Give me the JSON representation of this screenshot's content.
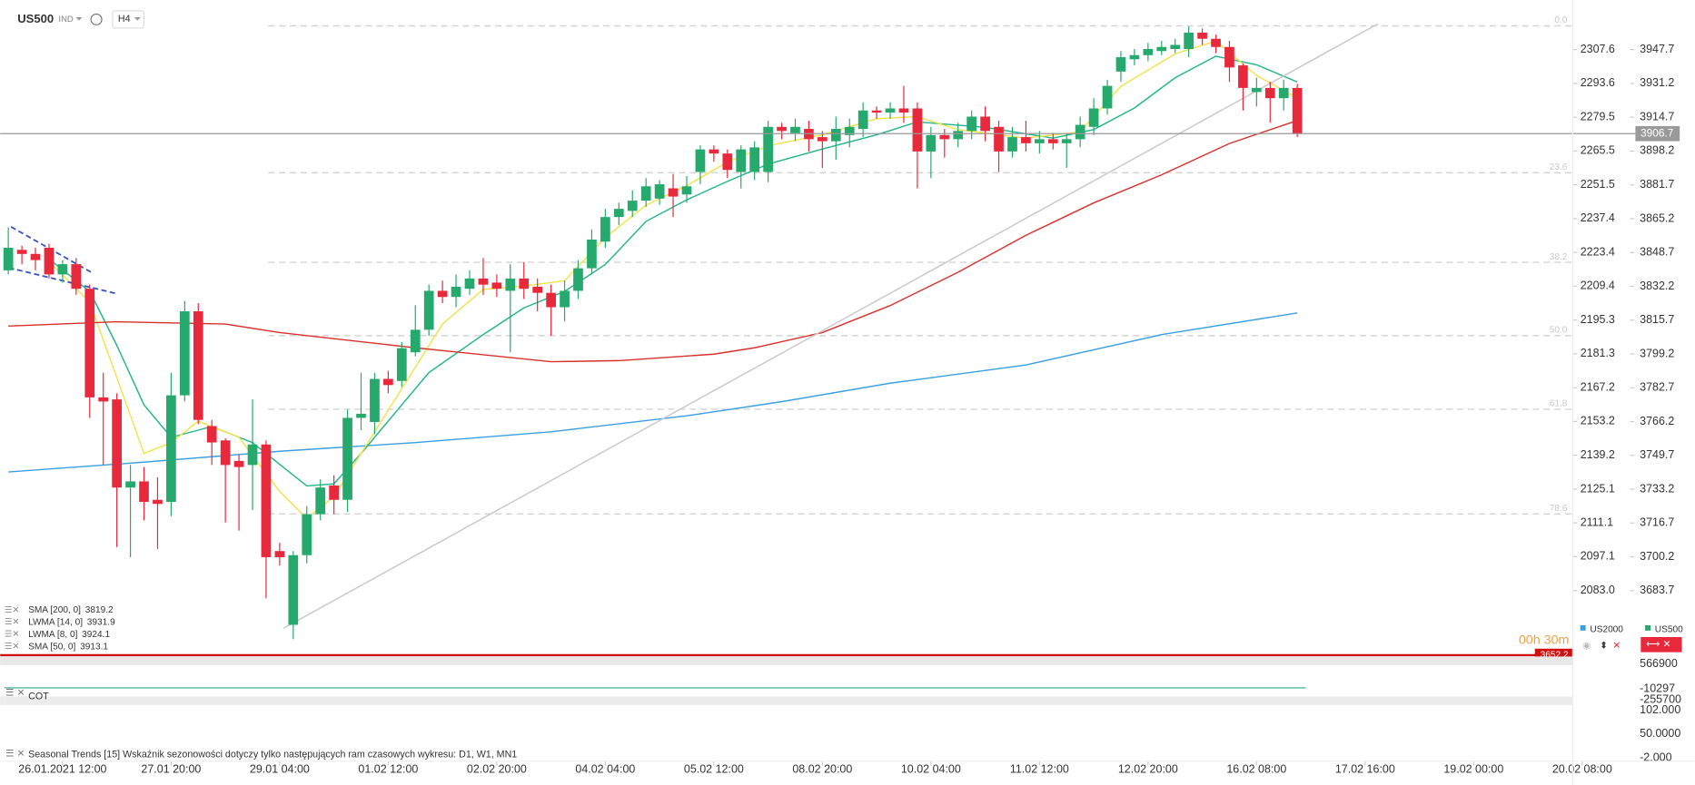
{
  "header": {
    "symbol": "US500",
    "kind": "IND",
    "timeframe": "H4"
  },
  "chart_data": {
    "type": "candlestick",
    "title": "US500",
    "up_color": "#26a96c",
    "down_color": "#e8293b",
    "xlim": [
      -0.6,
      115.3
    ],
    "xticks": [
      {
        "value": 4,
        "label": "26.01.2021 12:00"
      },
      {
        "value": 12,
        "label": "27.01 20:00"
      },
      {
        "value": 20,
        "label": "29.01 04:00"
      },
      {
        "value": 28,
        "label": "01.02 12:00"
      },
      {
        "value": 36,
        "label": "02.02 20:00"
      },
      {
        "value": 44,
        "label": "04.02 04:00"
      },
      {
        "value": 52,
        "label": "05.02 12:00"
      },
      {
        "value": 60,
        "label": "08.02 20:00"
      },
      {
        "value": 68,
        "label": "10.02 04:00"
      },
      {
        "value": 76,
        "label": "11.02 12:00"
      },
      {
        "value": 84,
        "label": "12.02 20:00"
      },
      {
        "value": 92,
        "label": "16.02 08:00"
      },
      {
        "value": 100,
        "label": "17.02 16:00"
      },
      {
        "value": 108,
        "label": "19.02 00:00"
      },
      {
        "value": 116,
        "label": "20.02 08:00"
      }
    ],
    "ylim": [
      3654.7,
      3967.7
    ],
    "yticks": [
      3947.7,
      3931.2,
      3914.7,
      3898.2,
      3881.7,
      3865.2,
      3848.7,
      3832.2,
      3815.7,
      3799.2,
      3782.7,
      3766.2,
      3749.7,
      3733.2,
      3716.7,
      3700.2,
      3683.7
    ],
    "y2lim": [
      2058.3,
      2324.6
    ],
    "y2ticks": [
      2307.6,
      2293.6,
      2279.5,
      2265.5,
      2251.5,
      2237.4,
      2223.4,
      2209.4,
      2195.3,
      2181.3,
      2167.2,
      2153.2,
      2139.2,
      2125.1,
      2111.1,
      2097.1,
      {
        "value": 2083,
        "label": "2083.0"
      }
    ],
    "candles": [
      [
        3840,
        3861,
        3838,
        3851
      ],
      [
        3850,
        3852,
        3843,
        3848
      ],
      [
        3848,
        3851,
        3840,
        3845
      ],
      [
        3851,
        3853,
        3836,
        3838
      ],
      [
        3838,
        3845,
        3834,
        3843
      ],
      [
        3843,
        3846,
        3828,
        3831
      ],
      [
        3831,
        3833,
        3768,
        3778
      ],
      [
        3778,
        3790,
        3745,
        3776
      ],
      [
        3777,
        3780,
        3705,
        3734
      ],
      [
        3734,
        3745,
        3700,
        3737
      ],
      [
        3737,
        3744,
        3718,
        3727
      ],
      [
        3728,
        3739,
        3704,
        3726
      ],
      [
        3727,
        3790,
        3720,
        3779
      ],
      [
        3779,
        3825,
        3776,
        3820
      ],
      [
        3820,
        3824,
        3765,
        3767
      ],
      [
        3764,
        3767,
        3745,
        3756
      ],
      [
        3757,
        3758,
        3717,
        3745
      ],
      [
        3747,
        3750,
        3713,
        3744
      ],
      [
        3745,
        3777,
        3723,
        3755
      ],
      [
        3755,
        3757,
        3680,
        3700
      ],
      [
        3703,
        3707,
        3696,
        3700
      ],
      [
        3667,
        3703,
        3660,
        3701
      ],
      [
        3701,
        3725,
        3697,
        3721
      ],
      [
        3721,
        3738,
        3718,
        3734
      ],
      [
        3735,
        3740,
        3721,
        3728
      ],
      [
        3728,
        3772,
        3722,
        3768
      ],
      [
        3768,
        3790,
        3762,
        3770
      ],
      [
        3766,
        3790,
        3760,
        3787
      ],
      [
        3787,
        3791,
        3780,
        3784
      ],
      [
        3786,
        3805,
        3783,
        3802
      ],
      [
        3800,
        3823,
        3798,
        3811
      ],
      [
        3811,
        3833,
        3808,
        3830
      ],
      [
        3830,
        3835,
        3824,
        3827
      ],
      [
        3827,
        3838,
        3822,
        3832
      ],
      [
        3831,
        3840,
        3828,
        3836
      ],
      [
        3836,
        3846,
        3828,
        3833
      ],
      [
        3834,
        3838,
        3827,
        3831
      ],
      [
        3830,
        3843,
        3800,
        3836
      ],
      [
        3836,
        3844,
        3826,
        3831
      ],
      [
        3832,
        3836,
        3820,
        3829
      ],
      [
        3829,
        3833,
        3808,
        3822
      ],
      [
        3822,
        3835,
        3815,
        3830
      ],
      [
        3830,
        3845,
        3826,
        3841
      ],
      [
        3841,
        3860,
        3838,
        3855
      ],
      [
        3854,
        3870,
        3851,
        3866
      ],
      [
        3866,
        3873,
        3862,
        3870
      ],
      [
        3869,
        3879,
        3866,
        3874
      ],
      [
        3874,
        3885,
        3871,
        3881
      ],
      [
        3875,
        3884,
        3872,
        3882
      ],
      [
        3880,
        3887,
        3866,
        3876
      ],
      [
        3877,
        3886,
        3873,
        3881
      ],
      [
        3888,
        3901,
        3882,
        3899
      ],
      [
        3899,
        3901,
        3893,
        3897
      ],
      [
        3897,
        3899,
        3885,
        3889
      ],
      [
        3888,
        3901,
        3880,
        3899
      ],
      [
        3888,
        3903,
        3884,
        3900
      ],
      [
        3888,
        3913,
        3883,
        3910
      ],
      [
        3910,
        3912,
        3904,
        3908
      ],
      [
        3907,
        3914,
        3903,
        3910
      ],
      [
        3909,
        3913,
        3898,
        3904
      ],
      [
        3905,
        3908,
        3890,
        3903
      ],
      [
        3903,
        3915,
        3894,
        3909
      ],
      [
        3906,
        3914,
        3900,
        3910
      ],
      [
        3909,
        3922,
        3905,
        3918
      ],
      [
        3918,
        3920,
        3914,
        3917
      ],
      [
        3917,
        3922,
        3914,
        3919
      ],
      [
        3919,
        3930,
        3912,
        3917
      ],
      [
        3919,
        3922,
        3880,
        3898
      ],
      [
        3898,
        3910,
        3885,
        3906
      ],
      [
        3906,
        3909,
        3895,
        3904
      ],
      [
        3904,
        3912,
        3900,
        3908
      ],
      [
        3908,
        3918,
        3904,
        3915
      ],
      [
        3915,
        3920,
        3903,
        3908
      ],
      [
        3910,
        3913,
        3888,
        3898
      ],
      [
        3898,
        3910,
        3895,
        3905
      ],
      [
        3905,
        3913,
        3898,
        3902
      ],
      [
        3902,
        3908,
        3897,
        3904
      ],
      [
        3904,
        3907,
        3899,
        3902
      ],
      [
        3902,
        3907,
        3890,
        3904
      ],
      [
        3904,
        3915,
        3900,
        3911
      ],
      [
        3910,
        3924,
        3906,
        3919
      ],
      [
        3919,
        3933,
        3916,
        3930
      ],
      [
        3937,
        3947,
        3932,
        3944
      ],
      [
        3943,
        3948,
        3940,
        3945
      ],
      [
        3945,
        3951,
        3942,
        3948
      ],
      [
        3947,
        3952,
        3945,
        3949
      ],
      [
        3948,
        3953,
        3946,
        3950
      ],
      [
        3948,
        3959,
        3944,
        3956
      ],
      [
        3956,
        3958,
        3950,
        3953
      ],
      [
        3953,
        3955,
        3946,
        3949
      ],
      [
        3949,
        3952,
        3932,
        3939
      ],
      [
        3940,
        3941,
        3918,
        3929
      ],
      [
        3927,
        3934,
        3920,
        3929
      ],
      [
        3929,
        3932,
        3912,
        3924
      ],
      [
        3924,
        3933,
        3918,
        3929
      ],
      [
        3929,
        3931,
        3905,
        3906.7
      ]
    ],
    "series": [
      {
        "name": "SMA [200, 0]",
        "color": "#3a9fe0",
        "x": [
          0,
          10,
          20,
          30,
          40,
          50,
          57,
          65,
          75,
          85,
          95
        ],
        "values": [
          3741.6,
          3746.4,
          3751.7,
          3755.9,
          3761.2,
          3769,
          3775.9,
          3784.9,
          3793.8,
          3808.6,
          3819.2
        ]
      },
      {
        "name": "LWMA [14, 0]",
        "color": "#1fb58a",
        "x": [
          3,
          6,
          8,
          10,
          12,
          15,
          18,
          20,
          22,
          24,
          26,
          28,
          31,
          35,
          38,
          41,
          44,
          47,
          50,
          53,
          56,
          60,
          64,
          67,
          72,
          77,
          80,
          83,
          86,
          89,
          92,
          95
        ],
        "values": [
          3845.5,
          3829.7,
          3803.3,
          3774.3,
          3758.5,
          3763.8,
          3755.9,
          3745.3,
          3734.8,
          3735.8,
          3750.6,
          3766.4,
          3790.1,
          3808.6,
          3821.7,
          3829.7,
          3842.8,
          3863.9,
          3874.4,
          3883.4,
          3891.8,
          3899.2,
          3906.1,
          3912.4,
          3909.8,
          3904.5,
          3908.7,
          3919.2,
          3934,
          3944.5,
          3940.3,
          3931.9
        ]
      },
      {
        "name": "LWMA [8, 0]",
        "color": "#f2e24a",
        "x": [
          3,
          6,
          8,
          10,
          12,
          14,
          17,
          20,
          22,
          24,
          26,
          29,
          32,
          35,
          38,
          41,
          44,
          47,
          50,
          53,
          56,
          60,
          64,
          67,
          70,
          75,
          79,
          82,
          86,
          89,
          92,
          95
        ],
        "values": [
          3844.4,
          3824.4,
          3787.5,
          3750.6,
          3755.9,
          3766.4,
          3758.5,
          3732.1,
          3719,
          3729.5,
          3750.6,
          3782.2,
          3813.8,
          3830.7,
          3832.3,
          3834.9,
          3856,
          3871.8,
          3881.3,
          3892.9,
          3900.8,
          3906.1,
          3914,
          3915,
          3908.7,
          3904.5,
          3907.6,
          3929.8,
          3945.6,
          3951.9,
          3935.1,
          3924.1
        ]
      },
      {
        "name": "SMA [50, 0]",
        "color": "#d9302c",
        "x": [
          0,
          8,
          16,
          20,
          30,
          40,
          45,
          52,
          55,
          60,
          65,
          70,
          75,
          80,
          85,
          90,
          95
        ],
        "values": [
          3812.8,
          3814.9,
          3813.8,
          3809.6,
          3802.2,
          3795.4,
          3795.9,
          3799.1,
          3802.2,
          3809.6,
          3822.8,
          3839.1,
          3857.1,
          3872.9,
          3886.6,
          3901.9,
          3913.1
        ]
      }
    ],
    "fib_levels": [
      {
        "label": "0.0",
        "price": 3959.3
      },
      {
        "label": "23.6",
        "price": 3887.6
      },
      {
        "label": "38.2",
        "price": 3843.9
      },
      {
        "label": "50.0",
        "price": 3808.1
      },
      {
        "label": "61.8",
        "price": 3772.2
      },
      {
        "label": "78.6",
        "price": 3721.1
      }
    ],
    "alert_level": 3652.2,
    "countdown": "00h 30m",
    "legend": [
      "US2000",
      "US500"
    ]
  },
  "cot_pane": {
    "label": "COT",
    "ticks": [
      566900,
      -10297,
      -255700
    ]
  },
  "seasonal_pane": {
    "label": "Seasonal Trends [15] Wskaźnik sezonowości dotyczy tylko następujących ram czasowych wykresu: D1, W1, MN1",
    "ylim": [
      -12,
      116
    ],
    "ticks": [
      {
        "value": 102,
        "label": "102.000"
      },
      {
        "value": 50,
        "label": "50.0000"
      },
      {
        "value": -2,
        "label": "-2.000"
      }
    ]
  }
}
